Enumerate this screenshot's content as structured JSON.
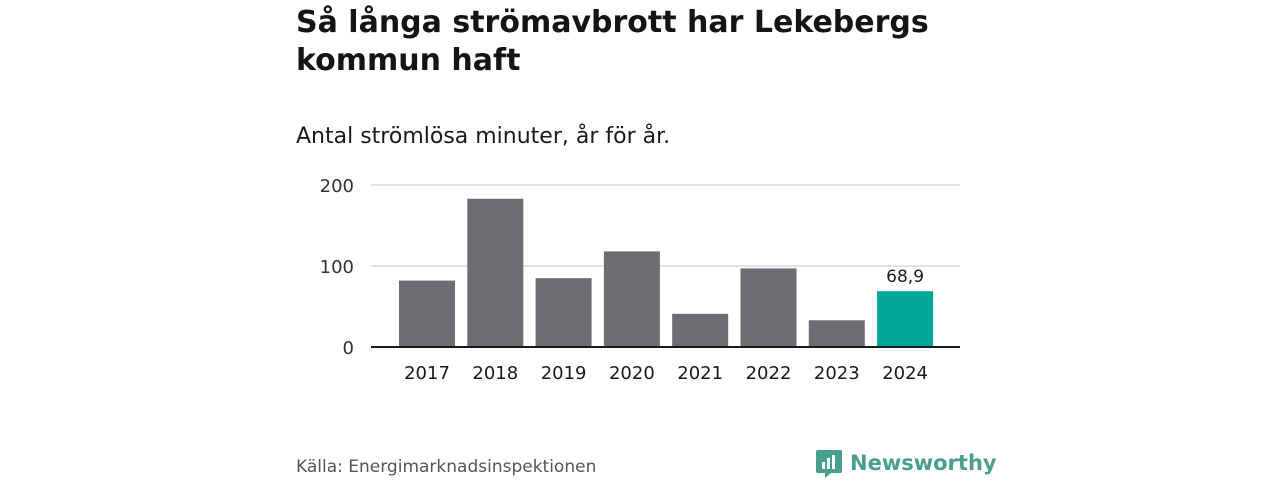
{
  "title": "Så långa strömavbrott har Lekebergs kommun haft",
  "subtitle": "Antal strömlösa minuter, år för år.",
  "source": "Källa: Energimarknadsinspektionen",
  "brand": {
    "name": "Newsworthy",
    "logo_icon": "newsworthy-logo-icon"
  },
  "colors": {
    "bar": "#6d6c73",
    "highlight": "#00a596",
    "grid": "#d9d9d9",
    "axis": "#1a1a1a",
    "brand": "#4a9e8e"
  },
  "chart_data": {
    "type": "bar",
    "title": "Så långa strömavbrott har Lekebergs kommun haft",
    "subtitle": "Antal strömlösa minuter, år för år.",
    "xlabel": "",
    "ylabel": "",
    "categories": [
      "2017",
      "2018",
      "2019",
      "2020",
      "2021",
      "2022",
      "2023",
      "2024"
    ],
    "values": [
      82,
      183,
      85,
      118,
      41,
      97,
      33,
      68.9
    ],
    "highlight_index": 7,
    "data_labels": [
      {
        "index": 7,
        "text": "68,9"
      }
    ],
    "ylim": [
      0,
      200
    ],
    "yticks": [
      0,
      100,
      200
    ],
    "ytick_labels": [
      "0",
      "100",
      "200"
    ],
    "grid": true,
    "legend": "none"
  }
}
